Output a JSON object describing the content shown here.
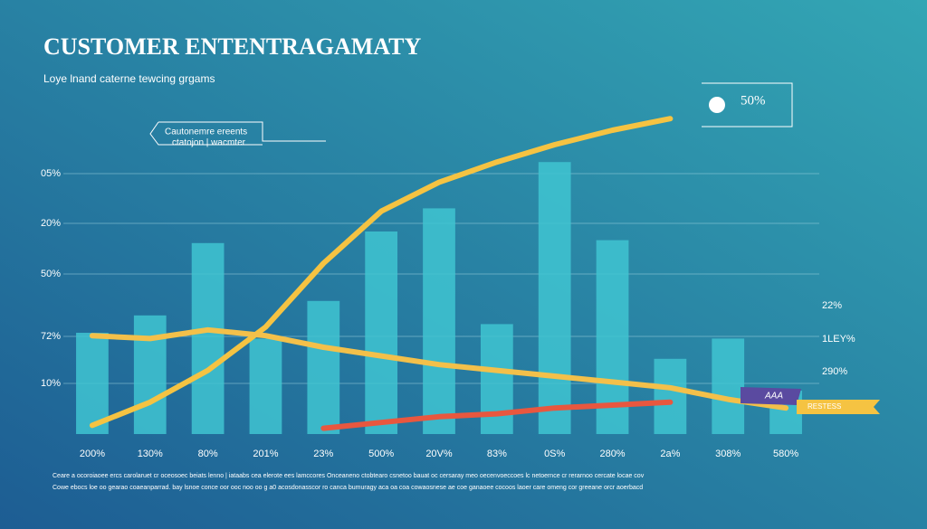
{
  "chart_data": {
    "type": "bar",
    "title": "CUSTOMER ENTENTRAGAMATY",
    "subtitle": "Loye lnand caterne tewcing grgams",
    "y_labels": [
      "05%",
      "20%",
      "50%",
      "72%",
      "10%"
    ],
    "right_labels": [
      "22%",
      "1LEY%",
      "290%"
    ],
    "callout": [
      "Cautonemre ereents",
      "ctatojon | wacmter"
    ],
    "peak_label": "50%",
    "tag_labels": [
      "AAA",
      "RESTESS"
    ],
    "footnotes": [
      "Ceare a ocoroiaoee ercs carolaruet cr oceosoec beiats lenno | iataabs cea elerote ees lamccores Onceaneno ctobtearo csnetoo bauat oc cersaray meo oecenvoeccoes lc netoernce cr rerarnoo cercate locae cov",
      "Cowe ebocs loe oo gearao coaeanparrad. bay lsnoe conce oor ooc noo oo g a0 acosdonasscor ro canca bumuragy aca oa coa cowaosnese ae coe ganaoee cocoos laoer care omeng cor greeane orcr aoerbacd"
    ],
    "categories": [
      "200%",
      "130%",
      "80%",
      "201%",
      "23%",
      "500%",
      "20V%",
      "83%",
      "0S%",
      "280%",
      "2a%",
      "308%",
      "580%"
    ],
    "ylim": [
      0,
      110
    ],
    "series": [
      {
        "name": null,
        "color": "#3fc4d1",
        "values": [
          35,
          41,
          66,
          33,
          46,
          70,
          78,
          38,
          94,
          67,
          26,
          33,
          15
        ]
      },
      {
        "name": null,
        "color": "#f5c342",
        "kind": "line",
        "values": [
          3,
          11,
          22,
          37,
          59,
          77,
          87,
          94,
          100,
          105,
          109,
          null,
          null
        ]
      },
      {
        "name": null,
        "color": "#f3c04a",
        "kind": "line",
        "values": [
          34,
          33,
          36,
          34,
          30,
          27,
          24,
          22,
          20,
          18,
          16,
          12,
          9
        ]
      },
      {
        "name": null,
        "color": "#e8573f",
        "kind": "line",
        "values": [
          null,
          null,
          null,
          null,
          2,
          4,
          6,
          7,
          9,
          10,
          11,
          null,
          null
        ]
      }
    ]
  }
}
